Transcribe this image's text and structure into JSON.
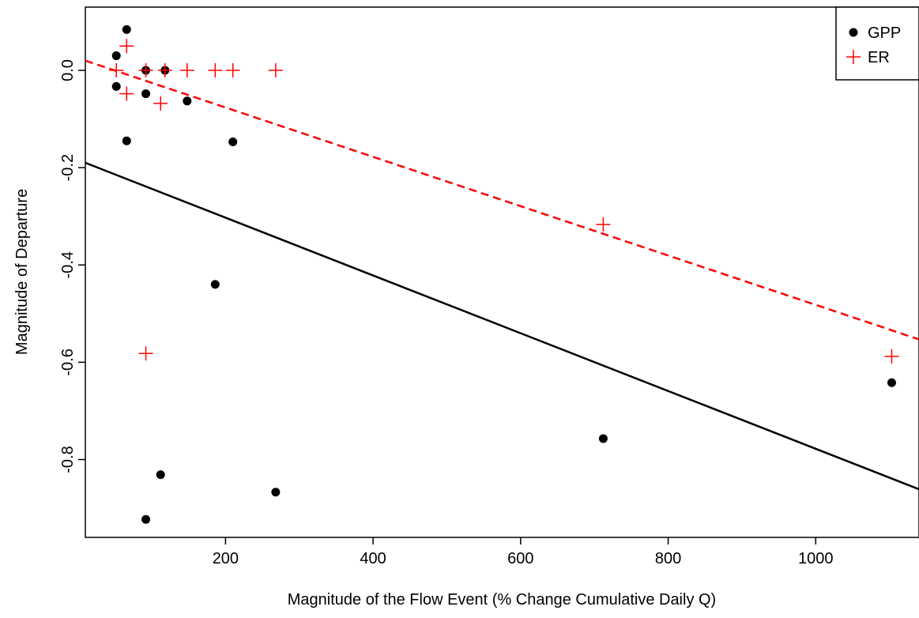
{
  "chart_data": {
    "type": "scatter",
    "title": "",
    "xlabel": "Magnitude of the Flow Event (% Change Cumulative Daily Q)",
    "ylabel": "Magnitude of Departure",
    "xlim": [
      10,
      1140
    ],
    "ylim": [
      -0.96,
      0.13
    ],
    "x_ticks": [
      200,
      400,
      600,
      800,
      1000
    ],
    "x_tick_labels": [
      "200",
      "400",
      "600",
      "800",
      "1000"
    ],
    "y_ticks": [
      0.0,
      -0.2,
      -0.4,
      -0.6,
      -0.8
    ],
    "y_tick_labels": [
      "0.0",
      "-0.2",
      "-0.4",
      "-0.6",
      "-0.8"
    ],
    "grid": false,
    "legend_position": "top-right",
    "series": [
      {
        "name": "GPP",
        "marker": "filled-circle",
        "color": "#000000",
        "points": [
          {
            "x": 52,
            "y": 0.03
          },
          {
            "x": 52,
            "y": -0.033
          },
          {
            "x": 66,
            "y": 0.084
          },
          {
            "x": 66,
            "y": -0.145
          },
          {
            "x": 92,
            "y": 0.0
          },
          {
            "x": 92,
            "y": -0.048
          },
          {
            "x": 92,
            "y": -0.923
          },
          {
            "x": 112,
            "y": -0.831
          },
          {
            "x": 118,
            "y": 0.0
          },
          {
            "x": 148,
            "y": -0.063
          },
          {
            "x": 186,
            "y": -0.44
          },
          {
            "x": 210,
            "y": -0.147
          },
          {
            "x": 268,
            "y": -0.867
          },
          {
            "x": 712,
            "y": -0.757
          },
          {
            "x": 1103,
            "y": -0.642
          }
        ],
        "fit_line": {
          "style": "solid",
          "x": [
            10,
            1140
          ],
          "y": [
            -0.19,
            -0.861
          ]
        }
      },
      {
        "name": "ER",
        "marker": "plus",
        "color": "#ff0000",
        "points": [
          {
            "x": 52,
            "y": 0.0
          },
          {
            "x": 66,
            "y": 0.05
          },
          {
            "x": 66,
            "y": -0.048
          },
          {
            "x": 92,
            "y": 0.0
          },
          {
            "x": 92,
            "y": -0.582
          },
          {
            "x": 112,
            "y": -0.068
          },
          {
            "x": 118,
            "y": 0.0
          },
          {
            "x": 148,
            "y": 0.0
          },
          {
            "x": 186,
            "y": 0.0
          },
          {
            "x": 210,
            "y": 0.0
          },
          {
            "x": 268,
            "y": 0.0
          },
          {
            "x": 712,
            "y": -0.317
          },
          {
            "x": 1103,
            "y": -0.588
          }
        ],
        "fit_line": {
          "style": "dashed",
          "x": [
            10,
            1140
          ],
          "y": [
            0.02,
            -0.553
          ]
        }
      }
    ]
  }
}
